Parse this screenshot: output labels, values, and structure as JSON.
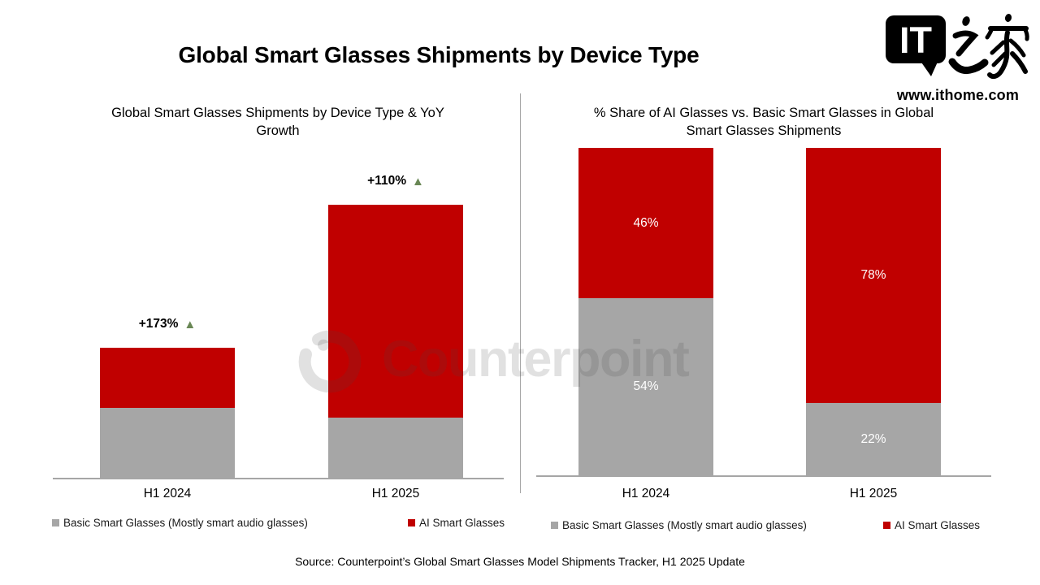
{
  "page": {
    "title": "Global Smart Glasses Shipments by Device Type",
    "source": "Source: Counterpoint’s Global Smart Glasses Model Shipments Tracker, H1 2025 Update"
  },
  "logo": {
    "bubble_text": "IT",
    "cjk_text": "之家",
    "website": "www.ithome.com"
  },
  "watermark": {
    "text": "Counterpoint"
  },
  "legend": {
    "basic_label": "Basic Smart Glasses (Mostly smart audio glasses)",
    "ai_label": "AI Smart Glasses"
  },
  "icons": {
    "up_triangle": "▲"
  },
  "colors": {
    "ai_red": "#C00000",
    "basic_gray": "#A6A6A6",
    "growth_green": "#698755",
    "axis_line": "#A6A6A6",
    "divider": "#A6A6A6",
    "label_on_bar": "#FFFFFF",
    "title_text": "#000000"
  },
  "chart_data": [
    {
      "type": "bar",
      "stacked": true,
      "title": "Global Smart Glasses Shipments by Device Type & YoY Growth",
      "categories": [
        "H1 2024",
        "H1 2025"
      ],
      "unit": "indexed shipments (H1 2024 total = 100; absolute values not labeled, estimated from bar heights)",
      "series": [
        {
          "name": "Basic Smart Glasses (Mostly smart audio glasses)",
          "color": "#A6A6A6",
          "values": [
            54,
            46
          ]
        },
        {
          "name": "AI Smart Glasses",
          "color": "#C00000",
          "values": [
            46,
            164
          ]
        }
      ],
      "annotations": [
        {
          "category": "H1 2024",
          "text": "+173%"
        },
        {
          "category": "H1 2025",
          "text": "+110%"
        }
      ],
      "yaxis": {
        "visible": false
      },
      "grid": false,
      "legend_position": "bottom"
    },
    {
      "type": "bar",
      "stacked": true,
      "title": "% Share of AI Glasses vs. Basic Smart Glasses in Global Smart Glasses Shipments",
      "categories": [
        "H1 2024",
        "H1 2025"
      ],
      "unit": "% share",
      "series": [
        {
          "name": "Basic Smart Glasses (Mostly smart audio glasses)",
          "color": "#A6A6A6",
          "values": [
            54,
            22
          ],
          "labels": [
            "54%",
            "22%"
          ]
        },
        {
          "name": "AI Smart Glasses",
          "color": "#C00000",
          "values": [
            46,
            78
          ],
          "labels": [
            "46%",
            "78%"
          ]
        }
      ],
      "yaxis": {
        "visible": false,
        "range": [
          0,
          100
        ]
      },
      "grid": false,
      "legend_position": "bottom"
    }
  ]
}
